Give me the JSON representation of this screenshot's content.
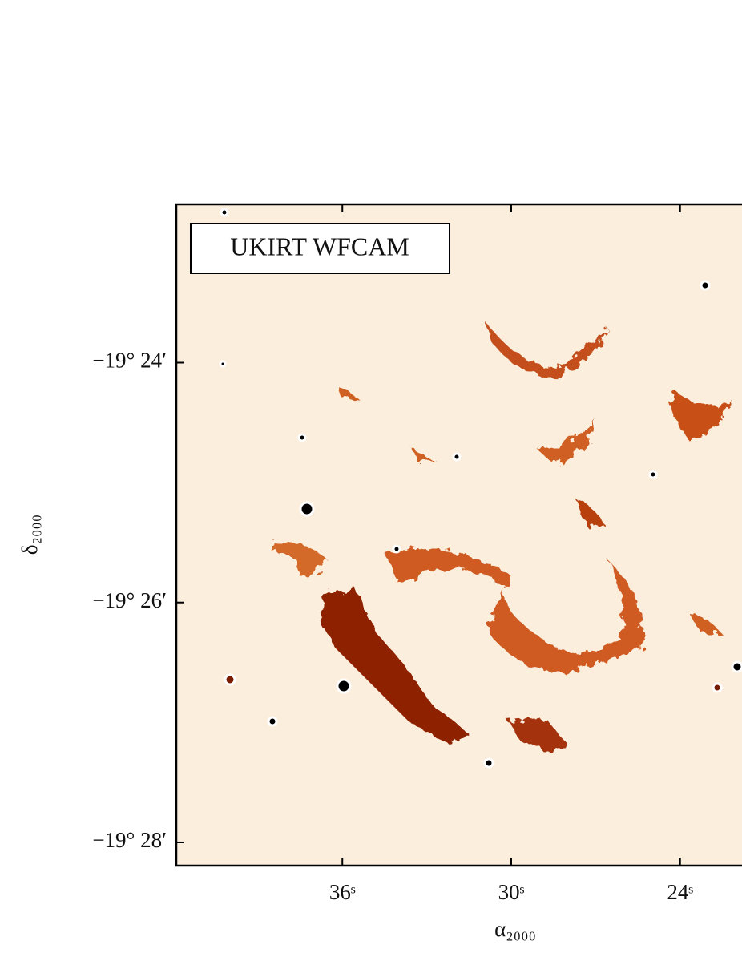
{
  "chart_data": {
    "type": "image",
    "annotation": "UKIRT WFCAM",
    "x_label": "α₂₀₀₀",
    "y_label": "δ₂₀₀₀",
    "xlim": [
      41.9,
      21.8
    ],
    "xticks": [
      {
        "value": 36,
        "label": "36ˢ"
      },
      {
        "value": 30,
        "label": "30ˢ"
      },
      {
        "value": 24,
        "label": "24ˢ"
      }
    ],
    "ylim": [
      -19.4699,
      -19.378
    ],
    "yticks": [
      {
        "value": -19.4,
        "label": "−19° 24′"
      },
      {
        "value": -19.433333,
        "label": "−19° 26′"
      },
      {
        "value": -19.466667,
        "label": "−19° 28′"
      }
    ]
  }
}
